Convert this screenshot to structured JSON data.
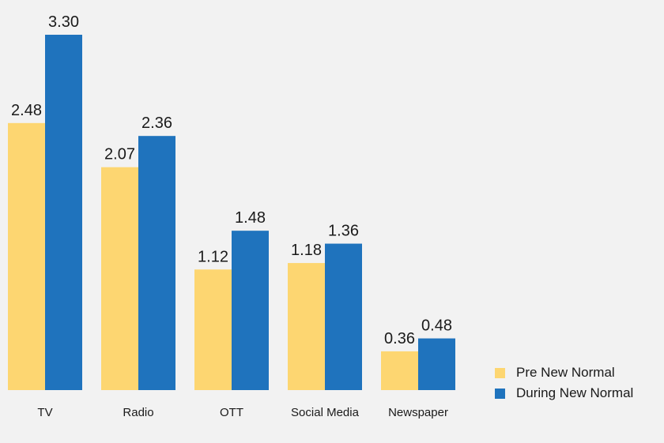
{
  "chart_data": {
    "type": "bar",
    "categories": [
      "TV",
      "Radio",
      "OTT",
      "Social Media",
      "Newspaper"
    ],
    "series": [
      {
        "name": "Pre New Normal",
        "values": [
          2.48,
          2.07,
          1.12,
          1.18,
          0.36
        ],
        "color": "#fdd671"
      },
      {
        "name": "During New Normal",
        "values": [
          3.3,
          2.36,
          1.48,
          1.36,
          0.48
        ],
        "color": "#1f73bd"
      }
    ],
    "value_labels": [
      [
        "2.48",
        "2.07",
        "1.12",
        "1.18",
        "0.36"
      ],
      [
        "3.30",
        "2.36",
        "1.48",
        "1.36",
        "0.48"
      ]
    ],
    "title": "",
    "xlabel": "",
    "ylabel": "",
    "ylim": [
      0,
      3.3
    ],
    "grid": false,
    "legend_position": "bottom-right"
  }
}
